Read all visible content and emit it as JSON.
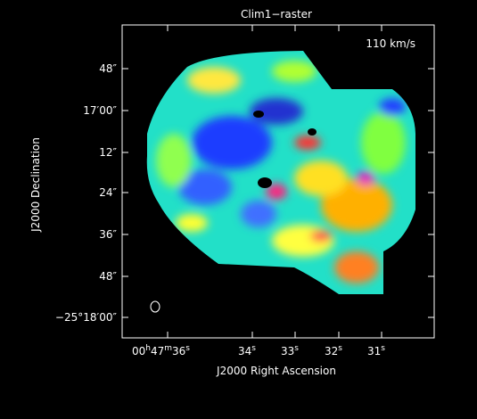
{
  "plot": {
    "title": "Clim1−raster",
    "annotation": "110 km/s",
    "x_axis": {
      "label": "J2000 Right Ascension",
      "ticks": [
        [
          "00",
          "h",
          "47",
          "m",
          "36",
          "s"
        ],
        [
          "34",
          "s"
        ],
        [
          "33",
          "s"
        ],
        [
          "32",
          "s"
        ],
        [
          "31",
          "s"
        ]
      ]
    },
    "y_axis": {
      "label": "J2000 Declination",
      "ticks": [
        "48″",
        "17′00″",
        "12″",
        "24″",
        "36″",
        "48″",
        "−25°18′00″"
      ]
    }
  }
}
